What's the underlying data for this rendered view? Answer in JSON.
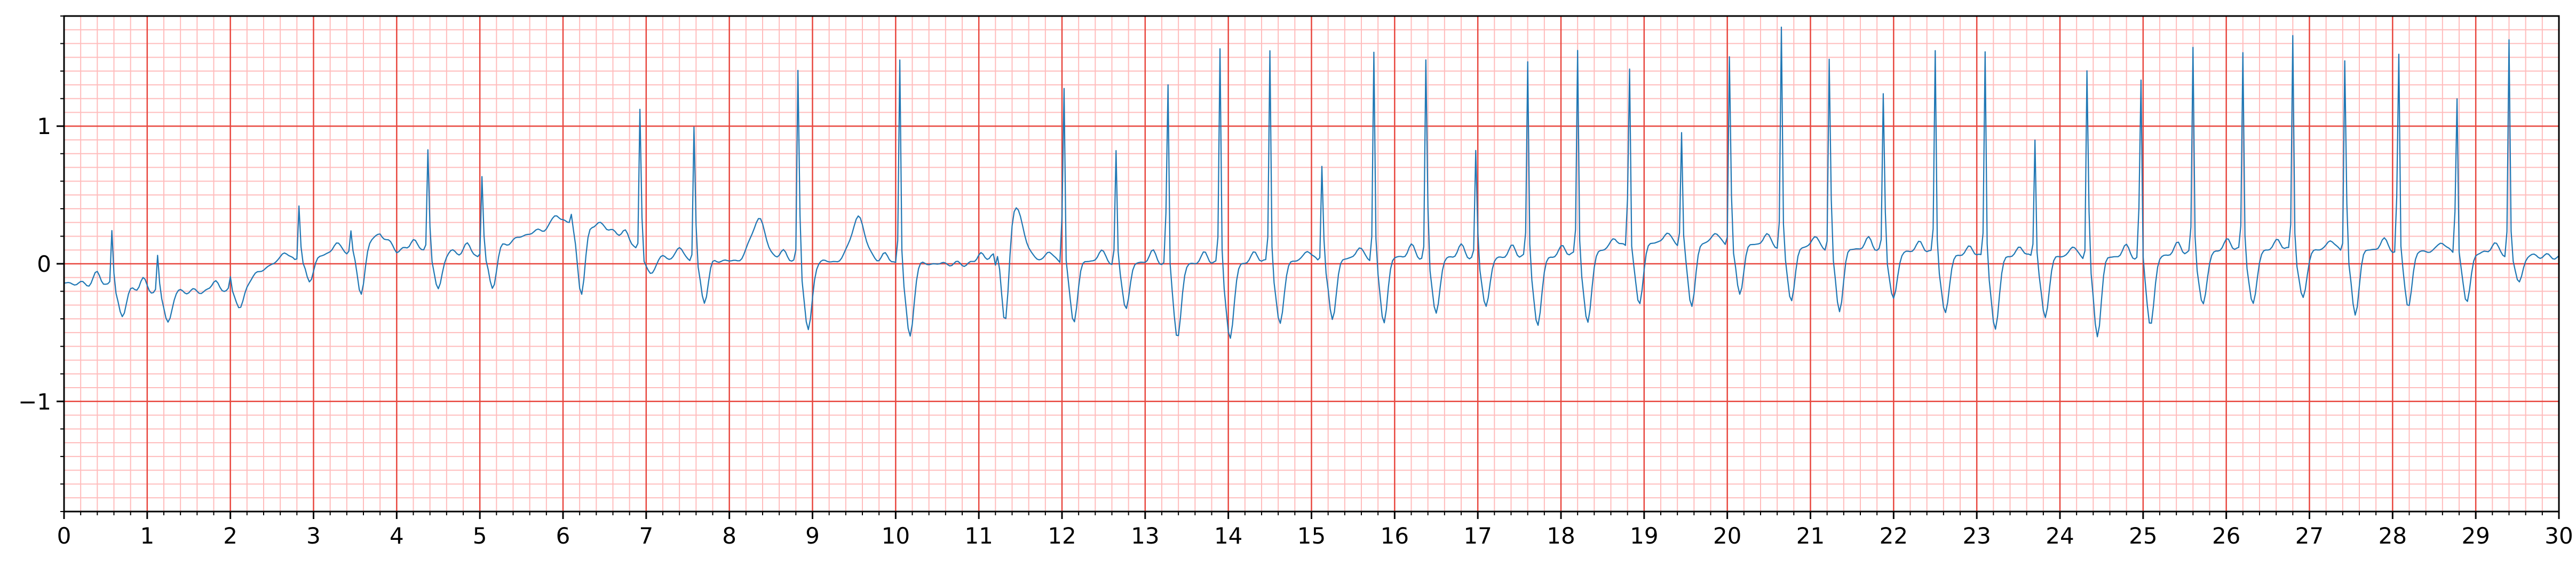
{
  "chart_data": {
    "type": "line",
    "title": "",
    "xlabel": "",
    "ylabel": "",
    "xlim": [
      0,
      30
    ],
    "ylim": [
      -1.8,
      1.8
    ],
    "x_ticks": [
      0,
      1,
      2,
      3,
      4,
      5,
      6,
      7,
      8,
      9,
      10,
      11,
      12,
      13,
      14,
      15,
      16,
      17,
      18,
      19,
      20,
      21,
      22,
      23,
      24,
      25,
      26,
      27,
      28,
      29,
      30
    ],
    "x_tick_labels": [
      "0",
      "1",
      "2",
      "3",
      "4",
      "5",
      "6",
      "7",
      "8",
      "9",
      "10",
      "11",
      "12",
      "13",
      "14",
      "15",
      "16",
      "17",
      "18",
      "19",
      "20",
      "21",
      "22",
      "23",
      "24",
      "25",
      "26",
      "27",
      "28",
      "29",
      "30"
    ],
    "y_ticks": [
      -1,
      0,
      1
    ],
    "y_tick_labels": [
      "−1",
      "0",
      "1"
    ],
    "grid": {
      "major": true,
      "major_x_step": 1,
      "major_y_step": 1,
      "major_color": "#e8473f",
      "minor": true,
      "minor_x_step": 0.2,
      "minor_y_step": 0.1,
      "minor_color": "#ffbcbc"
    },
    "series": [
      {
        "color": "#1f77b4",
        "sample_rate": 40,
        "baseline": [
          [
            0,
            -0.14
          ],
          [
            0.5,
            -0.15
          ],
          [
            1,
            -0.2
          ],
          [
            1.5,
            -0.2
          ],
          [
            2,
            -0.2
          ],
          [
            2.2,
            -0.12
          ],
          [
            2.5,
            0.0
          ],
          [
            3,
            0.05
          ],
          [
            3.5,
            0.1
          ],
          [
            3.8,
            0.22
          ],
          [
            4,
            0.1
          ],
          [
            4.5,
            0.1
          ],
          [
            5,
            0.05
          ],
          [
            5.5,
            0.2
          ],
          [
            6,
            0.3
          ],
          [
            6.5,
            0.28
          ],
          [
            7,
            0.05
          ],
          [
            8,
            0.02
          ],
          [
            9,
            0.02
          ],
          [
            10,
            0.0
          ],
          [
            11,
            0.0
          ],
          [
            12,
            0.02
          ],
          [
            14,
            0.0
          ],
          [
            16,
            0.05
          ],
          [
            18,
            0.05
          ],
          [
            19,
            0.15
          ],
          [
            20,
            0.15
          ],
          [
            21,
            0.12
          ],
          [
            22,
            0.1
          ],
          [
            23,
            0.05
          ],
          [
            24,
            0.05
          ],
          [
            25,
            0.05
          ],
          [
            26,
            0.1
          ],
          [
            27,
            0.1
          ],
          [
            28,
            0.1
          ],
          [
            29,
            0.08
          ],
          [
            30,
            0.05
          ]
        ],
        "beats": [
          {
            "t": 0.58,
            "r": 0.28,
            "s": -0.4
          },
          {
            "t": 1.13,
            "r": 0.08,
            "s": -0.45
          },
          {
            "t": 2.0,
            "r": -0.1,
            "s": -0.35
          },
          {
            "t": 2.83,
            "r": 0.48,
            "s": -0.15
          },
          {
            "t": 3.45,
            "r": 0.25,
            "s": -0.25
          },
          {
            "t": 4.38,
            "r": 0.9,
            "s": -0.23
          },
          {
            "t": 5.03,
            "r": 0.7,
            "s": -0.2
          },
          {
            "t": 6.1,
            "r": 0.38,
            "s": -0.28
          },
          {
            "t": 6.93,
            "r": 1.23,
            "s": -0.1
          },
          {
            "t": 7.58,
            "r": 1.09,
            "s": -0.3
          },
          {
            "t": 8.83,
            "r": 1.53,
            "s": -0.55
          },
          {
            "t": 10.05,
            "r": 1.51,
            "s": -0.6
          },
          {
            "t": 11.2,
            "r": -0.1,
            "s": -0.88
          },
          {
            "t": 12.02,
            "r": 1.42,
            "s": -0.47
          },
          {
            "t": 12.65,
            "r": 0.82,
            "s": -0.35
          },
          {
            "t": 13.27,
            "r": 1.42,
            "s": -0.6
          },
          {
            "t": 13.9,
            "r": 1.58,
            "s": -0.62
          },
          {
            "t": 14.5,
            "r": 1.57,
            "s": -0.5
          },
          {
            "t": 15.13,
            "r": 0.8,
            "s": -0.45
          },
          {
            "t": 15.75,
            "r": 1.55,
            "s": -0.47
          },
          {
            "t": 16.38,
            "r": 1.6,
            "s": -0.4
          },
          {
            "t": 16.98,
            "r": 0.88,
            "s": -0.35
          },
          {
            "t": 17.6,
            "r": 1.48,
            "s": -0.52
          },
          {
            "t": 18.2,
            "r": 1.57,
            "s": -0.5
          },
          {
            "t": 18.82,
            "r": 1.57,
            "s": -0.35
          },
          {
            "t": 19.45,
            "r": 0.97,
            "s": -0.35
          },
          {
            "t": 20.03,
            "r": 1.65,
            "s": -0.25
          },
          {
            "t": 20.65,
            "r": 1.72,
            "s": -0.3
          },
          {
            "t": 21.23,
            "r": 1.62,
            "s": -0.38
          },
          {
            "t": 21.88,
            "r": 1.33,
            "s": -0.3
          },
          {
            "t": 22.5,
            "r": 1.57,
            "s": -0.42
          },
          {
            "t": 23.1,
            "r": 1.57,
            "s": -0.55
          },
          {
            "t": 23.7,
            "r": 0.93,
            "s": -0.45
          },
          {
            "t": 24.33,
            "r": 1.55,
            "s": -0.58
          },
          {
            "t": 24.97,
            "r": 1.45,
            "s": -0.5
          },
          {
            "t": 25.6,
            "r": 1.58,
            "s": -0.35
          },
          {
            "t": 26.2,
            "r": 1.55,
            "s": -0.35
          },
          {
            "t": 26.8,
            "r": 1.68,
            "s": -0.3
          },
          {
            "t": 27.43,
            "r": 1.63,
            "s": -0.42
          },
          {
            "t": 28.07,
            "r": 1.65,
            "s": -0.35
          },
          {
            "t": 28.77,
            "r": 1.33,
            "s": -0.32
          },
          {
            "t": 29.4,
            "r": 1.63,
            "s": -0.15
          }
        ],
        "extra_waves": [
          {
            "t": 8.35,
            "a": 0.3,
            "w": 0.09
          },
          {
            "t": 9.55,
            "a": 0.32,
            "w": 0.09
          },
          {
            "t": 11.4,
            "a": 0.45,
            "w": 0.12
          }
        ]
      }
    ]
  }
}
